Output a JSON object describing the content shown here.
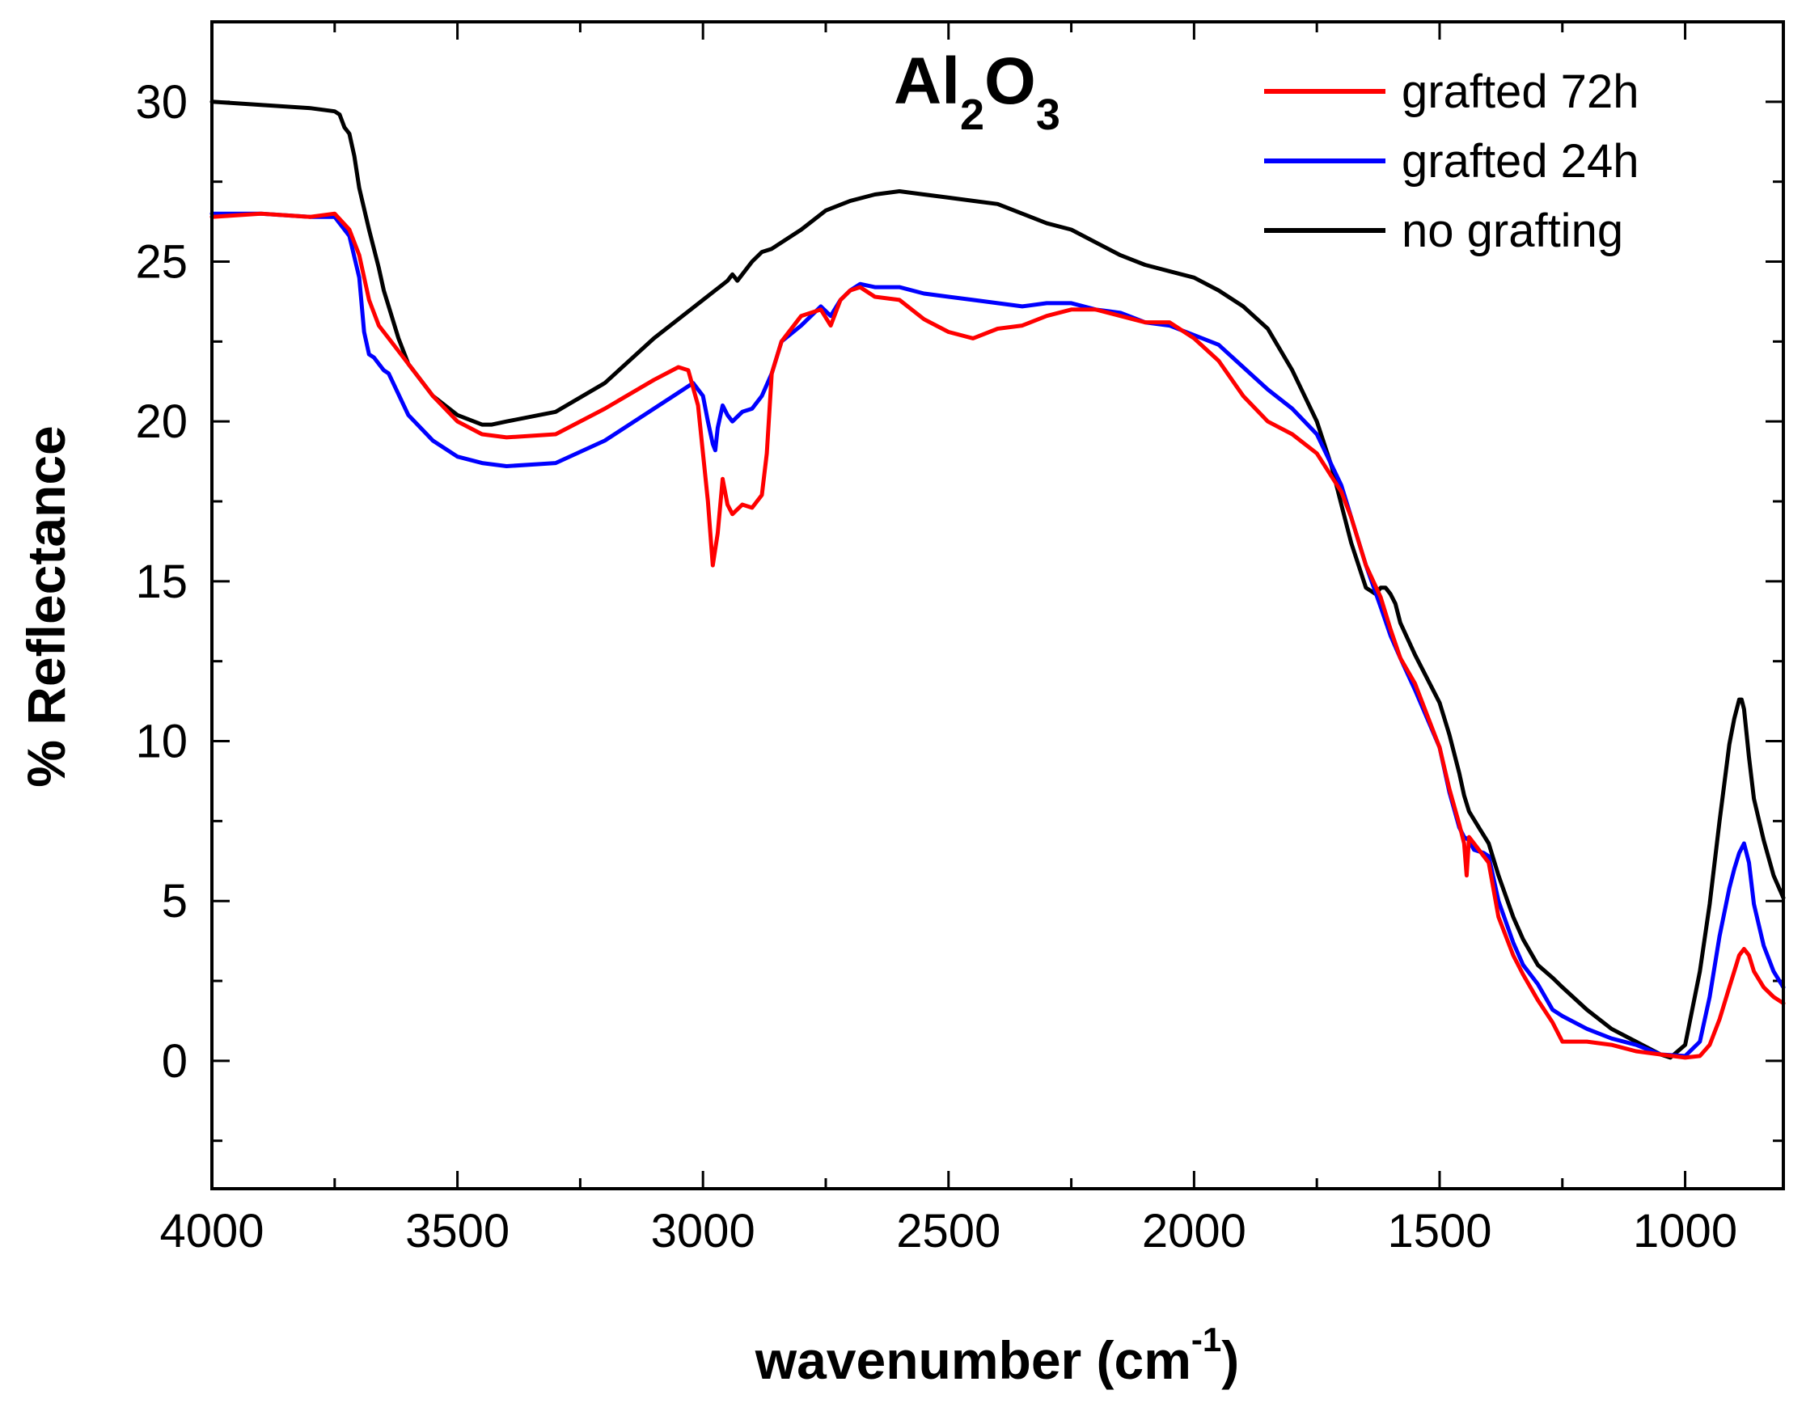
{
  "chart_data": {
    "type": "line",
    "title": {
      "main": "Al",
      "sub1": "2",
      "mid": "O",
      "sub2": "3"
    },
    "xlabel": {
      "main": "wavenumber (cm",
      "sup": "-1",
      "close": ")"
    },
    "ylabel": "% Reflectance",
    "xlim": [
      4000,
      800
    ],
    "ylim": [
      -4,
      32.5
    ],
    "x_ticks": [
      "4000",
      "3500",
      "3000",
      "2500",
      "2000",
      "1500",
      "1000"
    ],
    "x_tick_values": [
      4000,
      3500,
      3000,
      2500,
      2000,
      1500,
      1000
    ],
    "y_ticks": [
      "0",
      "5",
      "10",
      "15",
      "20",
      "25",
      "30"
    ],
    "y_tick_values": [
      0,
      5,
      10,
      15,
      20,
      25,
      30
    ],
    "legend_position": "top-right",
    "series": [
      {
        "name": "grafted 72h",
        "color": "#ff0000",
        "x": [
          4000,
          3900,
          3800,
          3750,
          3720,
          3700,
          3680,
          3660,
          3650,
          3640,
          3600,
          3550,
          3500,
          3450,
          3400,
          3300,
          3200,
          3100,
          3050,
          3030,
          3010,
          2990,
          2980,
          2970,
          2960,
          2950,
          2940,
          2920,
          2900,
          2880,
          2870,
          2860,
          2840,
          2800,
          2760,
          2740,
          2720,
          2700,
          2680,
          2650,
          2600,
          2550,
          2500,
          2450,
          2400,
          2350,
          2300,
          2250,
          2200,
          2150,
          2100,
          2050,
          2000,
          1950,
          1900,
          1850,
          1800,
          1750,
          1700,
          1680,
          1650,
          1620,
          1600,
          1580,
          1550,
          1500,
          1480,
          1460,
          1450,
          1445,
          1440,
          1430,
          1410,
          1400,
          1380,
          1350,
          1330,
          1300,
          1270,
          1250,
          1200,
          1150,
          1100,
          1050,
          1000,
          970,
          950,
          930,
          910,
          900,
          890,
          880,
          870,
          860,
          840,
          820,
          800
        ],
        "y": [
          26.4,
          26.5,
          26.4,
          26.5,
          26.0,
          25.2,
          23.8,
          23.0,
          22.8,
          22.6,
          21.8,
          20.8,
          20.0,
          19.6,
          19.5,
          19.6,
          20.4,
          21.3,
          21.7,
          21.6,
          20.5,
          17.5,
          15.5,
          16.5,
          18.2,
          17.4,
          17.1,
          17.4,
          17.3,
          17.7,
          19.0,
          21.5,
          22.5,
          23.3,
          23.5,
          23.0,
          23.8,
          24.1,
          24.2,
          23.9,
          23.8,
          23.2,
          22.8,
          22.6,
          22.9,
          23.0,
          23.3,
          23.5,
          23.5,
          23.3,
          23.1,
          23.1,
          22.6,
          21.9,
          20.8,
          20.0,
          19.6,
          19.0,
          17.8,
          17.0,
          15.5,
          14.5,
          13.5,
          12.6,
          11.8,
          9.8,
          8.5,
          7.4,
          6.8,
          5.8,
          7.0,
          6.8,
          6.4,
          6.2,
          4.5,
          3.3,
          2.7,
          1.9,
          1.2,
          0.6,
          0.6,
          0.5,
          0.3,
          0.2,
          0.1,
          0.15,
          0.5,
          1.3,
          2.3,
          2.8,
          3.3,
          3.5,
          3.3,
          2.8,
          2.3,
          2.0,
          1.8
        ]
      },
      {
        "name": "grafted 24h",
        "color": "#0000ff",
        "x": [
          4000,
          3900,
          3800,
          3750,
          3720,
          3700,
          3690,
          3680,
          3670,
          3660,
          3650,
          3640,
          3600,
          3550,
          3500,
          3450,
          3400,
          3300,
          3200,
          3100,
          3050,
          3020,
          3000,
          2990,
          2980,
          2975,
          2970,
          2960,
          2950,
          2940,
          2920,
          2900,
          2880,
          2860,
          2840,
          2800,
          2760,
          2740,
          2720,
          2700,
          2680,
          2650,
          2600,
          2550,
          2500,
          2450,
          2400,
          2350,
          2300,
          2250,
          2200,
          2150,
          2100,
          2050,
          2000,
          1950,
          1900,
          1850,
          1800,
          1750,
          1700,
          1680,
          1650,
          1620,
          1600,
          1580,
          1550,
          1500,
          1480,
          1460,
          1450,
          1440,
          1430,
          1410,
          1400,
          1380,
          1350,
          1330,
          1300,
          1270,
          1250,
          1200,
          1150,
          1100,
          1050,
          1000,
          970,
          950,
          930,
          910,
          900,
          890,
          880,
          870,
          860,
          840,
          820,
          800
        ],
        "y": [
          26.5,
          26.5,
          26.4,
          26.4,
          25.8,
          24.5,
          22.8,
          22.1,
          22.0,
          21.8,
          21.6,
          21.5,
          20.2,
          19.4,
          18.9,
          18.7,
          18.6,
          18.7,
          19.4,
          20.4,
          20.9,
          21.2,
          20.8,
          20.0,
          19.3,
          19.1,
          19.8,
          20.5,
          20.2,
          20.0,
          20.3,
          20.4,
          20.8,
          21.5,
          22.5,
          23.0,
          23.6,
          23.3,
          23.8,
          24.1,
          24.3,
          24.2,
          24.2,
          24.0,
          23.9,
          23.8,
          23.7,
          23.6,
          23.7,
          23.7,
          23.5,
          23.4,
          23.1,
          23.0,
          22.7,
          22.4,
          21.7,
          21.0,
          20.4,
          19.6,
          18.0,
          17.0,
          15.5,
          14.2,
          13.3,
          12.6,
          11.6,
          9.8,
          8.4,
          7.3,
          7.0,
          6.9,
          6.6,
          6.5,
          6.4,
          5.0,
          3.7,
          3.0,
          2.4,
          1.6,
          1.4,
          1.0,
          0.7,
          0.5,
          0.2,
          0.15,
          0.6,
          2.0,
          3.9,
          5.4,
          6.0,
          6.5,
          6.8,
          6.2,
          4.9,
          3.6,
          2.8,
          2.3
        ]
      },
      {
        "name": "no grafting",
        "color": "#000000",
        "x": [
          4000,
          3900,
          3800,
          3750,
          3740,
          3730,
          3720,
          3710,
          3700,
          3680,
          3660,
          3650,
          3640,
          3620,
          3600,
          3550,
          3500,
          3450,
          3430,
          3400,
          3300,
          3200,
          3100,
          3000,
          2950,
          2940,
          2930,
          2900,
          2880,
          2860,
          2850,
          2800,
          2750,
          2700,
          2650,
          2600,
          2550,
          2500,
          2450,
          2400,
          2350,
          2300,
          2250,
          2200,
          2150,
          2100,
          2050,
          2000,
          1950,
          1900,
          1850,
          1800,
          1750,
          1720,
          1700,
          1680,
          1650,
          1630,
          1620,
          1610,
          1600,
          1590,
          1580,
          1550,
          1500,
          1480,
          1460,
          1450,
          1440,
          1420,
          1400,
          1380,
          1350,
          1330,
          1300,
          1270,
          1250,
          1200,
          1150,
          1100,
          1050,
          1030,
          1000,
          970,
          950,
          930,
          910,
          900,
          890,
          885,
          880,
          870,
          860,
          840,
          820,
          800
        ],
        "y": [
          30.0,
          29.9,
          29.8,
          29.7,
          29.6,
          29.2,
          29.0,
          28.3,
          27.3,
          26.0,
          24.8,
          24.1,
          23.6,
          22.6,
          21.8,
          20.8,
          20.2,
          19.9,
          19.9,
          20.0,
          20.3,
          21.2,
          22.6,
          23.8,
          24.4,
          24.6,
          24.4,
          25.0,
          25.3,
          25.4,
          25.5,
          26.0,
          26.6,
          26.9,
          27.1,
          27.2,
          27.1,
          27.0,
          26.9,
          26.8,
          26.5,
          26.2,
          26.0,
          25.6,
          25.2,
          24.9,
          24.7,
          24.5,
          24.1,
          23.6,
          22.9,
          21.6,
          20.0,
          18.6,
          17.4,
          16.2,
          14.8,
          14.6,
          14.8,
          14.8,
          14.6,
          14.3,
          13.7,
          12.7,
          11.2,
          10.2,
          9.0,
          8.3,
          7.8,
          7.3,
          6.8,
          5.8,
          4.5,
          3.8,
          3.0,
          2.6,
          2.3,
          1.6,
          1.0,
          0.6,
          0.2,
          0.1,
          0.5,
          2.8,
          4.9,
          7.5,
          9.9,
          10.7,
          11.3,
          11.3,
          11.0,
          9.5,
          8.2,
          6.9,
          5.8,
          5.1
        ]
      }
    ]
  }
}
